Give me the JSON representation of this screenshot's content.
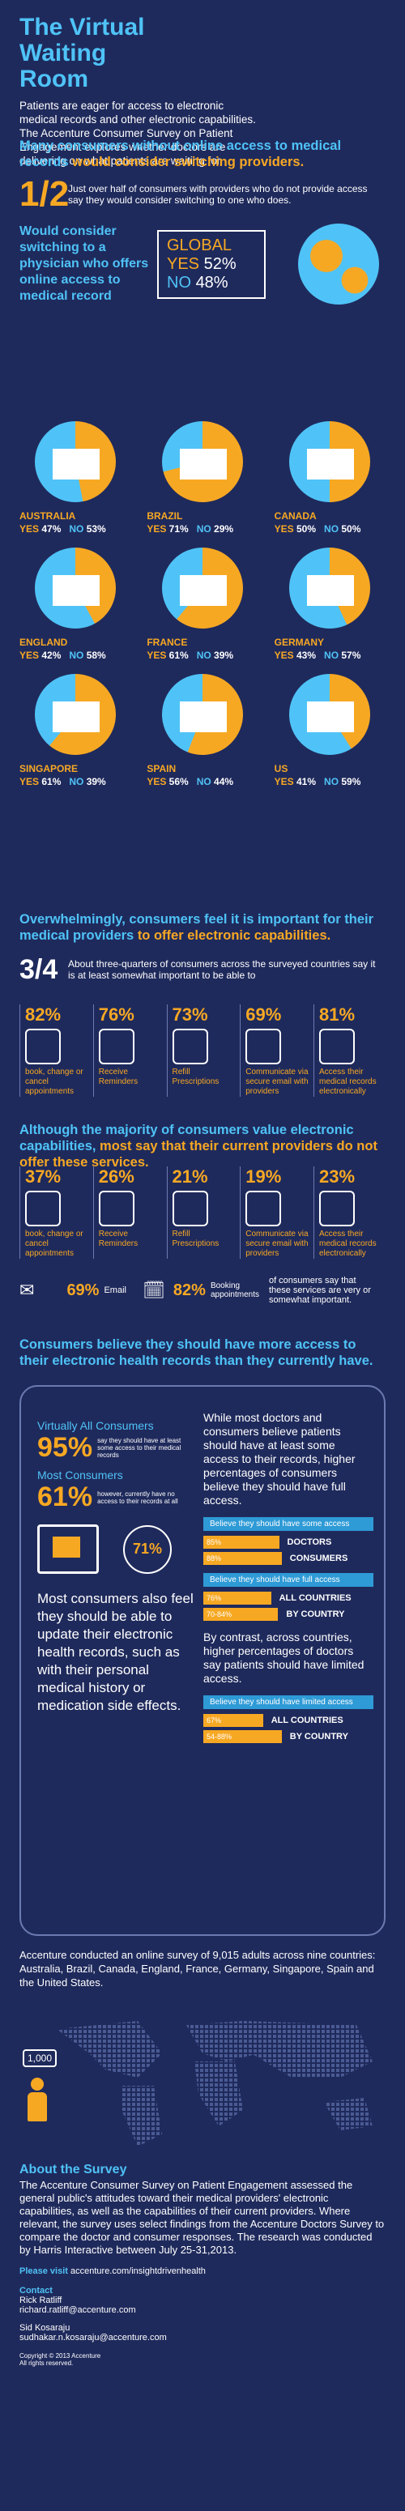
{
  "header": {
    "title": "The Virtual Waiting Room",
    "intro": "Patients are eager for access to electronic medical records and other electronic capabilities. The Accenture Consumer Survey on Patient Engagement explores whether doctors are delivering on what patients are waiting for."
  },
  "switching": {
    "headline_a": "Many consumers without online access to medical records ",
    "headline_b": "would consider switching providers.",
    "fraction": "1/2",
    "fraction_text": "Just over half of consumers with providers who do not provide access say they would consider switching to one who does.",
    "question": "Would consider switching to a physician who offers online access to medical record",
    "global_label": "GLOBAL",
    "yes_label": "YES",
    "yes_value": "52%",
    "no_label": "NO",
    "no_value": "48%"
  },
  "countries": [
    {
      "name": "AUSTRALIA",
      "yes": "47%",
      "no": "53%",
      "yes_frac": 0.47,
      "flag": "australia-flag"
    },
    {
      "name": "BRAZIL",
      "yes": "71%",
      "no": "29%",
      "yes_frac": 0.71,
      "flag": "brazil-flag"
    },
    {
      "name": "CANADA",
      "yes": "50%",
      "no": "50%",
      "yes_frac": 0.5,
      "flag": "canada-flag"
    },
    {
      "name": "ENGLAND",
      "yes": "42%",
      "no": "58%",
      "yes_frac": 0.42,
      "flag": "england-flag"
    },
    {
      "name": "FRANCE",
      "yes": "61%",
      "no": "39%",
      "yes_frac": 0.61,
      "flag": "france-flag"
    },
    {
      "name": "GERMANY",
      "yes": "43%",
      "no": "57%",
      "yes_frac": 0.43,
      "flag": "germany-flag"
    },
    {
      "name": "SINGAPORE",
      "yes": "61%",
      "no": "39%",
      "yes_frac": 0.61,
      "flag": "singapore-flag"
    },
    {
      "name": "SPAIN",
      "yes": "56%",
      "no": "44%",
      "yes_frac": 0.56,
      "flag": "spain-flag"
    },
    {
      "name": "US",
      "yes": "41%",
      "no": "59%",
      "yes_frac": 0.41,
      "flag": "us-flag"
    }
  ],
  "important": {
    "headline_a": "Overwhelmingly, consumers feel it is important for their medical providers ",
    "headline_b": "to offer electronic capabilities.",
    "fraction": "3/4",
    "fraction_text": "About three-quarters of consumers across the surveyed countries say it is at least somewhat important to be able to",
    "items": [
      {
        "pct": "82%",
        "desc": "book, change or cancel appointments",
        "icon": "calendar-plus-icon"
      },
      {
        "pct": "76%",
        "desc": "Receive Reminders",
        "icon": "pills-icon"
      },
      {
        "pct": "73%",
        "desc": "Refill Prescriptions",
        "icon": "capsule-icon"
      },
      {
        "pct": "69%",
        "desc": "Communicate via secure email with providers",
        "icon": "chat-icon"
      },
      {
        "pct": "81%",
        "desc": "Access their medical records electronically",
        "icon": "monitor-icon"
      }
    ]
  },
  "offer": {
    "headline_a": "Although the majority of consumers value electronic capabilities, ",
    "headline_b": "most say that their current providers do not offer these services.",
    "items": [
      {
        "pct": "37%",
        "desc": "book, change or cancel appointments",
        "icon": "calendar-plus-icon"
      },
      {
        "pct": "26%",
        "desc": "Receive Reminders",
        "icon": "pills-icon"
      },
      {
        "pct": "21%",
        "desc": "Refill Prescriptions",
        "icon": "capsule-icon"
      },
      {
        "pct": "19%",
        "desc": "Communicate via secure email with providers",
        "icon": "chat-icon"
      },
      {
        "pct": "23%",
        "desc": "Access their medical records electronically",
        "icon": "monitor-icon"
      }
    ],
    "email_pct": "69%",
    "email_label": "Email",
    "booking_pct": "82%",
    "booking_label": "Booking appointments",
    "note": "of consumers say that these services are very or somewhat important."
  },
  "records": {
    "headline": "Consumers believe they should have more access to their electronic health records than they currently have.",
    "all_label": "Virtually All Consumers",
    "all_pct": "95%",
    "all_text": "say they should have at least some access to their medical records",
    "most_label": "Most Consumers",
    "most_pct": "61%",
    "most_text": "however, currently have no access to their records at all",
    "right_text": "While most doctors and consumers believe patients should have at least some access to their records, higher percentages of consumers believe they should have full access.",
    "bar1_title": "Believe they should have some access",
    "bar1": [
      {
        "value": "85%",
        "label": "DOCTORS",
        "frac": 0.85
      },
      {
        "value": "88%",
        "label": "CONSUMERS",
        "frac": 0.88
      }
    ],
    "bar2_title": "Believe they should have full access",
    "bar2": [
      {
        "value": "76%",
        "label": "ALL COUNTRIES",
        "frac": 0.76
      },
      {
        "value": "70-84%",
        "label": "BY COUNTRY",
        "frac": 0.84
      }
    ],
    "update_pct": "71%",
    "update_text": "Most consumers also feel they should be able to update their electronic health records, such as with their personal medical history or medication side effects.",
    "contrast_text": "By contrast, across countries, higher percentages of doctors say patients should have limited access.",
    "bar3_title": "Believe they should have limited access",
    "bar3": [
      {
        "value": "67%",
        "label": "ALL COUNTRIES",
        "frac": 0.67
      },
      {
        "value": "54-88%",
        "label": "BY COUNTRY",
        "frac": 0.88
      }
    ]
  },
  "survey_note": "Accenture conducted an online survey of 9,015 adults across nine countries: Australia, Brazil, Canada, England, France, Germany, Singapore, Spain and the United States.",
  "map_badge": "1,000",
  "about": {
    "title": "About the Survey",
    "text": "The Accenture Consumer Survey on Patient Engagement assessed the general public's attitudes toward their medical providers' electronic capabilities, as well as the capabilities of their current providers. Where relevant, the survey uses select findings from the Accenture Doctors Survey to compare the doctor and consumer responses. The research was conducted by Harris Interactive between July 25-31,2013.",
    "visit_label": "Please visit",
    "visit_url": "accenture.com/insightdrivenhealth",
    "contact_title": "Contact",
    "contact1_name": "Rick Ratliff",
    "contact1_email": "richard.ratliff@accenture.com",
    "contact2_name": "Sid Kosaraju",
    "contact2_email": "sudhakar.n.kosaraju@accenture.com",
    "copyright": "Copyright © 2013 Accenture",
    "rights": "All rights reserved."
  },
  "colors": {
    "background": "#1f2a5c",
    "cyan": "#4fc3f7",
    "orange": "#f7a823",
    "pie_blue": "#2e9ad6"
  }
}
